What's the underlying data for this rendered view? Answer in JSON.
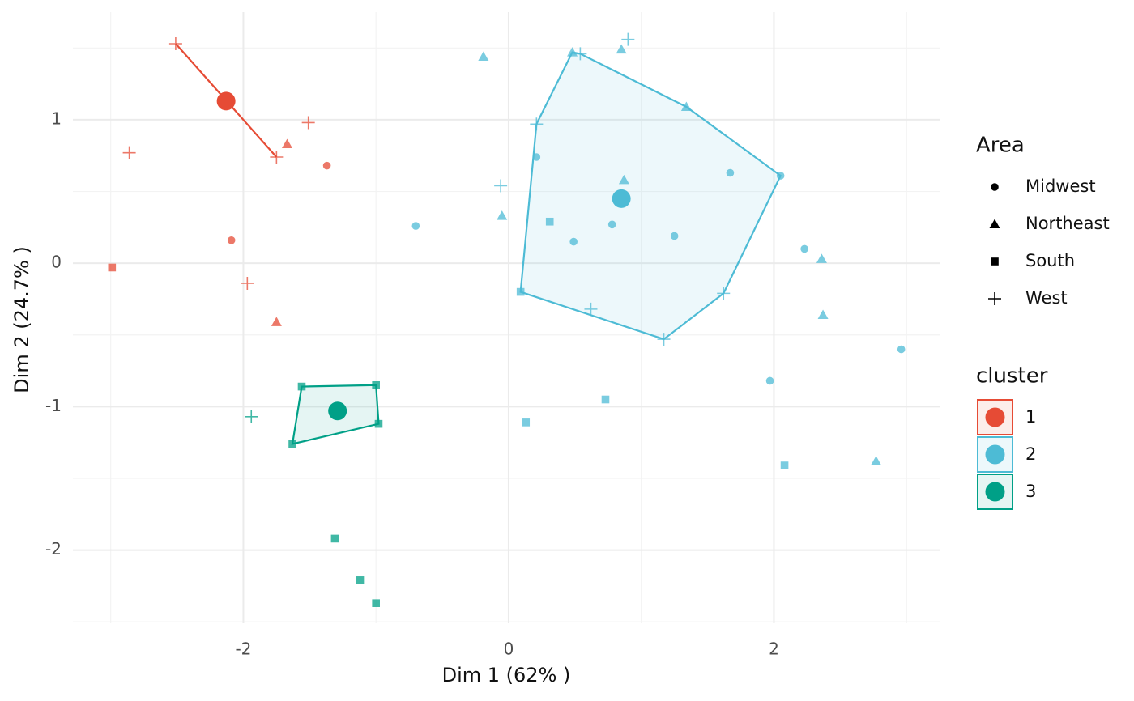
{
  "chart_data": {
    "type": "scatter",
    "x_label": "Dim 1 (62% )",
    "y_label": "Dim 2 (24.7% )",
    "xlim": [
      -3.285,
      3.249
    ],
    "ylim": [
      -2.51,
      1.75
    ],
    "xticks": [
      -2,
      0,
      2
    ],
    "yticks": [
      -2,
      -1,
      0,
      1
    ],
    "xminor": [
      -3,
      -1,
      1,
      3
    ],
    "yminor": [
      -2.5,
      -1.5,
      -0.5,
      0.5,
      1.5
    ],
    "grid": true,
    "shape_legend": {
      "title": "Area",
      "names": [
        "Midwest",
        "Northeast",
        "South",
        "West"
      ]
    },
    "legend_title": "cluster",
    "series": [
      {
        "name": "1",
        "color": "#E64B35",
        "x": [
          -2.51,
          -1.75,
          -2.86,
          -1.51,
          -1.97,
          -1.67,
          -1.75,
          -1.37,
          -2.09,
          -2.99
        ],
        "y": [
          1.53,
          0.74,
          0.77,
          0.98,
          -0.14,
          0.83,
          -0.41,
          0.68,
          0.16,
          -0.03
        ],
        "area": [
          "West",
          "West",
          "West",
          "West",
          "West",
          "Northeast",
          "Northeast",
          "Midwest",
          "Midwest",
          "South"
        ],
        "centroid": [
          -2.13,
          1.13
        ],
        "hull": [
          0,
          1
        ]
      },
      {
        "name": "2",
        "color": "#4DBBD5",
        "x": [
          0.48,
          -0.19,
          0.85,
          0.9,
          0.54,
          1.34,
          0.21,
          0.21,
          2.05,
          1.67,
          0.87,
          -0.06,
          -0.05,
          -0.7,
          0.31,
          0.78,
          1.25,
          0.49,
          2.23,
          2.36,
          0.09,
          1.62,
          0.62,
          2.37,
          1.17,
          2.96,
          1.97,
          0.73,
          0.13,
          2.08,
          2.77
        ],
        "y": [
          1.47,
          1.44,
          1.49,
          1.56,
          1.46,
          1.09,
          0.97,
          0.74,
          0.61,
          0.63,
          0.58,
          0.54,
          0.33,
          0.26,
          0.29,
          0.27,
          0.19,
          0.15,
          0.1,
          0.03,
          -0.2,
          -0.21,
          -0.32,
          -0.36,
          -0.53,
          -0.6,
          -0.82,
          -0.95,
          -1.11,
          -1.41,
          -1.38
        ],
        "area": [
          "Northeast",
          "Northeast",
          "Northeast",
          "West",
          "West",
          "Northeast",
          "West",
          "Midwest",
          "Midwest",
          "Midwest",
          "Northeast",
          "West",
          "Northeast",
          "Midwest",
          "South",
          "Midwest",
          "Midwest",
          "Midwest",
          "Midwest",
          "Northeast",
          "South",
          "West",
          "West",
          "Northeast",
          "West",
          "Midwest",
          "Midwest",
          "South",
          "South",
          "South",
          "Northeast"
        ],
        "centroid": [
          0.85,
          0.45
        ],
        "hull": [
          0,
          4,
          5,
          8,
          21,
          24,
          20,
          6
        ]
      },
      {
        "name": "3",
        "color": "#00A087",
        "x": [
          -1.56,
          -1.0,
          -0.98,
          -1.63,
          -1.94,
          -1.31,
          -1.12,
          -1.0
        ],
        "y": [
          -0.86,
          -0.85,
          -1.12,
          -1.26,
          -1.07,
          -1.92,
          -2.21,
          -2.37
        ],
        "area": [
          "South",
          "South",
          "South",
          "South",
          "West",
          "South",
          "South",
          "South"
        ],
        "centroid": [
          -1.29,
          -1.03
        ],
        "hull": [
          0,
          1,
          2,
          3
        ]
      }
    ]
  }
}
